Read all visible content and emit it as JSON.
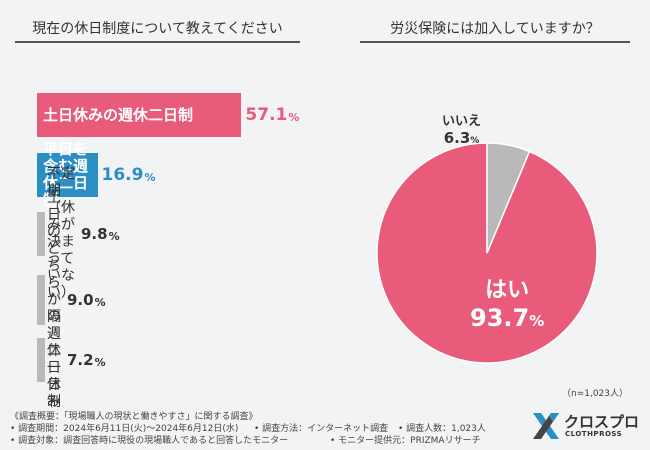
{
  "left_title": "現在の休日制度について教えてください",
  "right_title": "労災保険には加入していますか？",
  "sample_size": "（n=1,023人）",
  "chart_data": [
    {
      "type": "bar",
      "orientation": "horizontal",
      "categories": [
        "土日休みの週休二日制",
        "平日を含む週休二日制",
        "不定期（休みが決まっていない）",
        "土日のどちらかの\n週休一日制",
        "隔週二日休み"
      ],
      "values": [
        57.1,
        16.9,
        9.8,
        9.0,
        7.2
      ],
      "value_labels": [
        "57.1",
        "16.9",
        "9.8",
        "9.0",
        "7.2"
      ],
      "unit": "%",
      "colors": [
        "#e95b7b",
        "#2b8fc4",
        "#b9b9b9",
        "#b9b9b9",
        "#b9b9b9"
      ]
    },
    {
      "type": "pie",
      "labels": [
        "はい",
        "いいえ"
      ],
      "values": [
        93.7,
        6.3
      ],
      "value_labels": [
        "93.7",
        "6.3"
      ],
      "unit": "%",
      "colors": [
        "#e95b7b",
        "#b9b9b9"
      ]
    }
  ],
  "footer": {
    "line1": "《調査概要：「現場職人の現状と働きやすさ」に関する調査》",
    "period": "• 調査期間：2024年6月11日(火)～2024年6月12日(水)",
    "method": "• 調査方法：インターネット調査",
    "people": "• 調査人数：1,023人",
    "target": "• 調査対象：調査回答時に現役の現場職人であると回答したモニター",
    "provider": "• モニター提供元：PRIZMAリサーチ"
  },
  "logo": {
    "name": "クロスプロ",
    "sub": "CLOTHPROSS",
    "colors": [
      "#2b8fc4",
      "#444444"
    ]
  }
}
